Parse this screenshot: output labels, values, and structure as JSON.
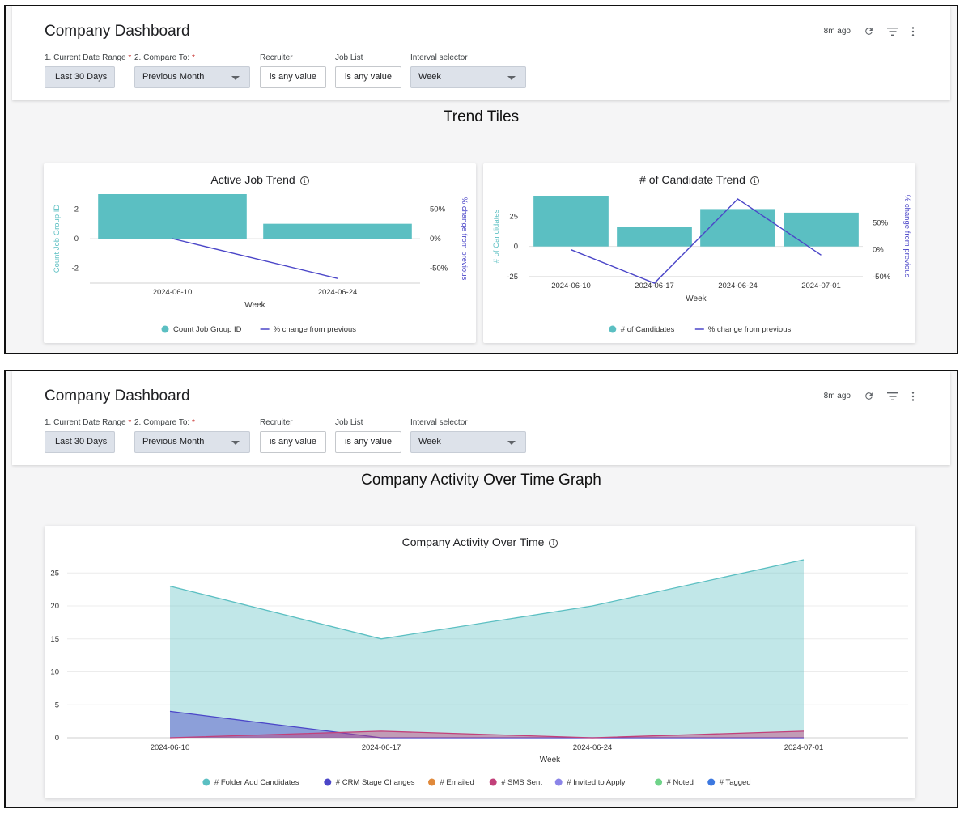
{
  "header": {
    "title": "Company Dashboard",
    "updated": "8m ago",
    "icons": [
      "refresh-icon",
      "filter-icon",
      "more-vert-icon"
    ],
    "filters": [
      {
        "label": "1. Current Date Range",
        "required": true,
        "value": "Last 30 Days",
        "style": "button"
      },
      {
        "label": "2. Compare To:",
        "required": true,
        "value": "Previous Month",
        "style": "dropdown"
      },
      {
        "label": "Recruiter",
        "required": false,
        "value": "is any value",
        "style": "input"
      },
      {
        "label": "Job List",
        "required": false,
        "value": "is any value",
        "style": "input"
      },
      {
        "label": "Interval selector",
        "required": false,
        "value": "Week",
        "style": "dropdown"
      }
    ]
  },
  "colors": {
    "teal": "#5bbfc2",
    "indigo": "#4b46c8",
    "accent_bg": "#dde2ea"
  },
  "panel1": {
    "section_title": "Trend Tiles",
    "card1": {
      "title": "Active Job Trend",
      "info_icon": "info-icon"
    },
    "card2": {
      "title": "# of Candidate Trend",
      "info_icon": "info-icon"
    }
  },
  "panel2": {
    "section_title": "Company Activity Over Time Graph",
    "card": {
      "title": "Company Activity Over Time",
      "info_icon": "info-icon"
    }
  },
  "chart_data": [
    {
      "type": "bar",
      "title": "Active Job Trend",
      "xlabel": "Week",
      "ylabel": "Count Job Group ID",
      "y2label": "% change from previous",
      "categories": [
        "2024-06-10",
        "2024-06-24"
      ],
      "yticks": [
        "2",
        "0",
        "-2"
      ],
      "y2ticks": [
        "50%",
        "0%",
        "-50%"
      ],
      "ylim": [
        -3,
        3
      ],
      "y2lim": [
        -75,
        75
      ],
      "series": [
        {
          "name": "Count Job Group ID",
          "type": "bar",
          "axis": "left",
          "values": [
            3,
            1
          ]
        },
        {
          "name": "% change from previous",
          "type": "line",
          "axis": "right",
          "values": [
            0,
            -67
          ]
        }
      ],
      "legend": "bottom"
    },
    {
      "type": "bar",
      "title": "# of Candidate Trend",
      "xlabel": "Week",
      "ylabel": "# of Candidates",
      "y2label": "% change from previous",
      "categories": [
        "2024-06-10",
        "2024-06-17",
        "2024-06-24",
        "2024-07-01"
      ],
      "yticks": [
        "25",
        "0",
        "-25"
      ],
      "y2ticks": [
        "50%",
        "0%",
        "-50%"
      ],
      "ylim": [
        -25,
        42
      ],
      "y2lim": [
        -50,
        100
      ],
      "series": [
        {
          "name": "# of Candidates",
          "type": "bar",
          "axis": "left",
          "values": [
            42,
            16,
            31,
            28
          ]
        },
        {
          "name": "% change from previous",
          "type": "line",
          "axis": "right",
          "values": [
            0,
            -62,
            94,
            -10
          ]
        }
      ],
      "legend": "bottom"
    },
    {
      "type": "area",
      "title": "Company Activity Over Time",
      "xlabel": "Week",
      "x": [
        "2024-06-10",
        "2024-06-17",
        "2024-06-24",
        "2024-07-01"
      ],
      "yticks": [
        "25",
        "20",
        "15",
        "10",
        "5",
        "0"
      ],
      "ylim": [
        0,
        27
      ],
      "grid": true,
      "series": [
        {
          "name": "# Folder Add Candidates",
          "color": "#5bbfc2",
          "values": [
            23,
            15,
            20,
            27
          ]
        },
        {
          "name": "# CRM Stage Changes",
          "color": "#4b46c8",
          "values": [
            4,
            0,
            0,
            0
          ]
        },
        {
          "name": "# Emailed",
          "color": "#e0893b",
          "values": [
            0,
            0,
            0,
            0
          ]
        },
        {
          "name": "# SMS Sent",
          "color": "#c2407a",
          "values": [
            0,
            1,
            0,
            1
          ]
        },
        {
          "name": "# Invited to Apply",
          "color": "#8b84e8",
          "values": [
            0,
            0,
            0,
            0
          ]
        },
        {
          "name": "# Noted",
          "color": "#6fd389",
          "values": [
            0,
            0,
            0,
            0
          ]
        },
        {
          "name": "# Tagged",
          "color": "#3c78e0",
          "values": [
            0,
            0,
            0,
            0
          ]
        }
      ],
      "legend": "bottom"
    }
  ]
}
